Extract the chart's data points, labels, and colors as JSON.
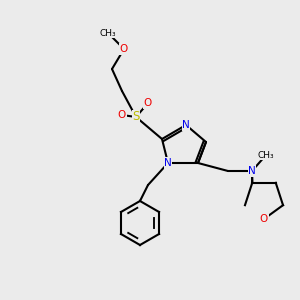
{
  "bg_color": "#ebebeb",
  "bond_color": "#000000",
  "bond_lw": 1.5,
  "atom_bg": "#ebebeb",
  "colors": {
    "N": "#0000ee",
    "O": "#ee0000",
    "S": "#bbbb00",
    "C": "#000000"
  },
  "font_size": 7.5,
  "font_size_small": 6.5
}
